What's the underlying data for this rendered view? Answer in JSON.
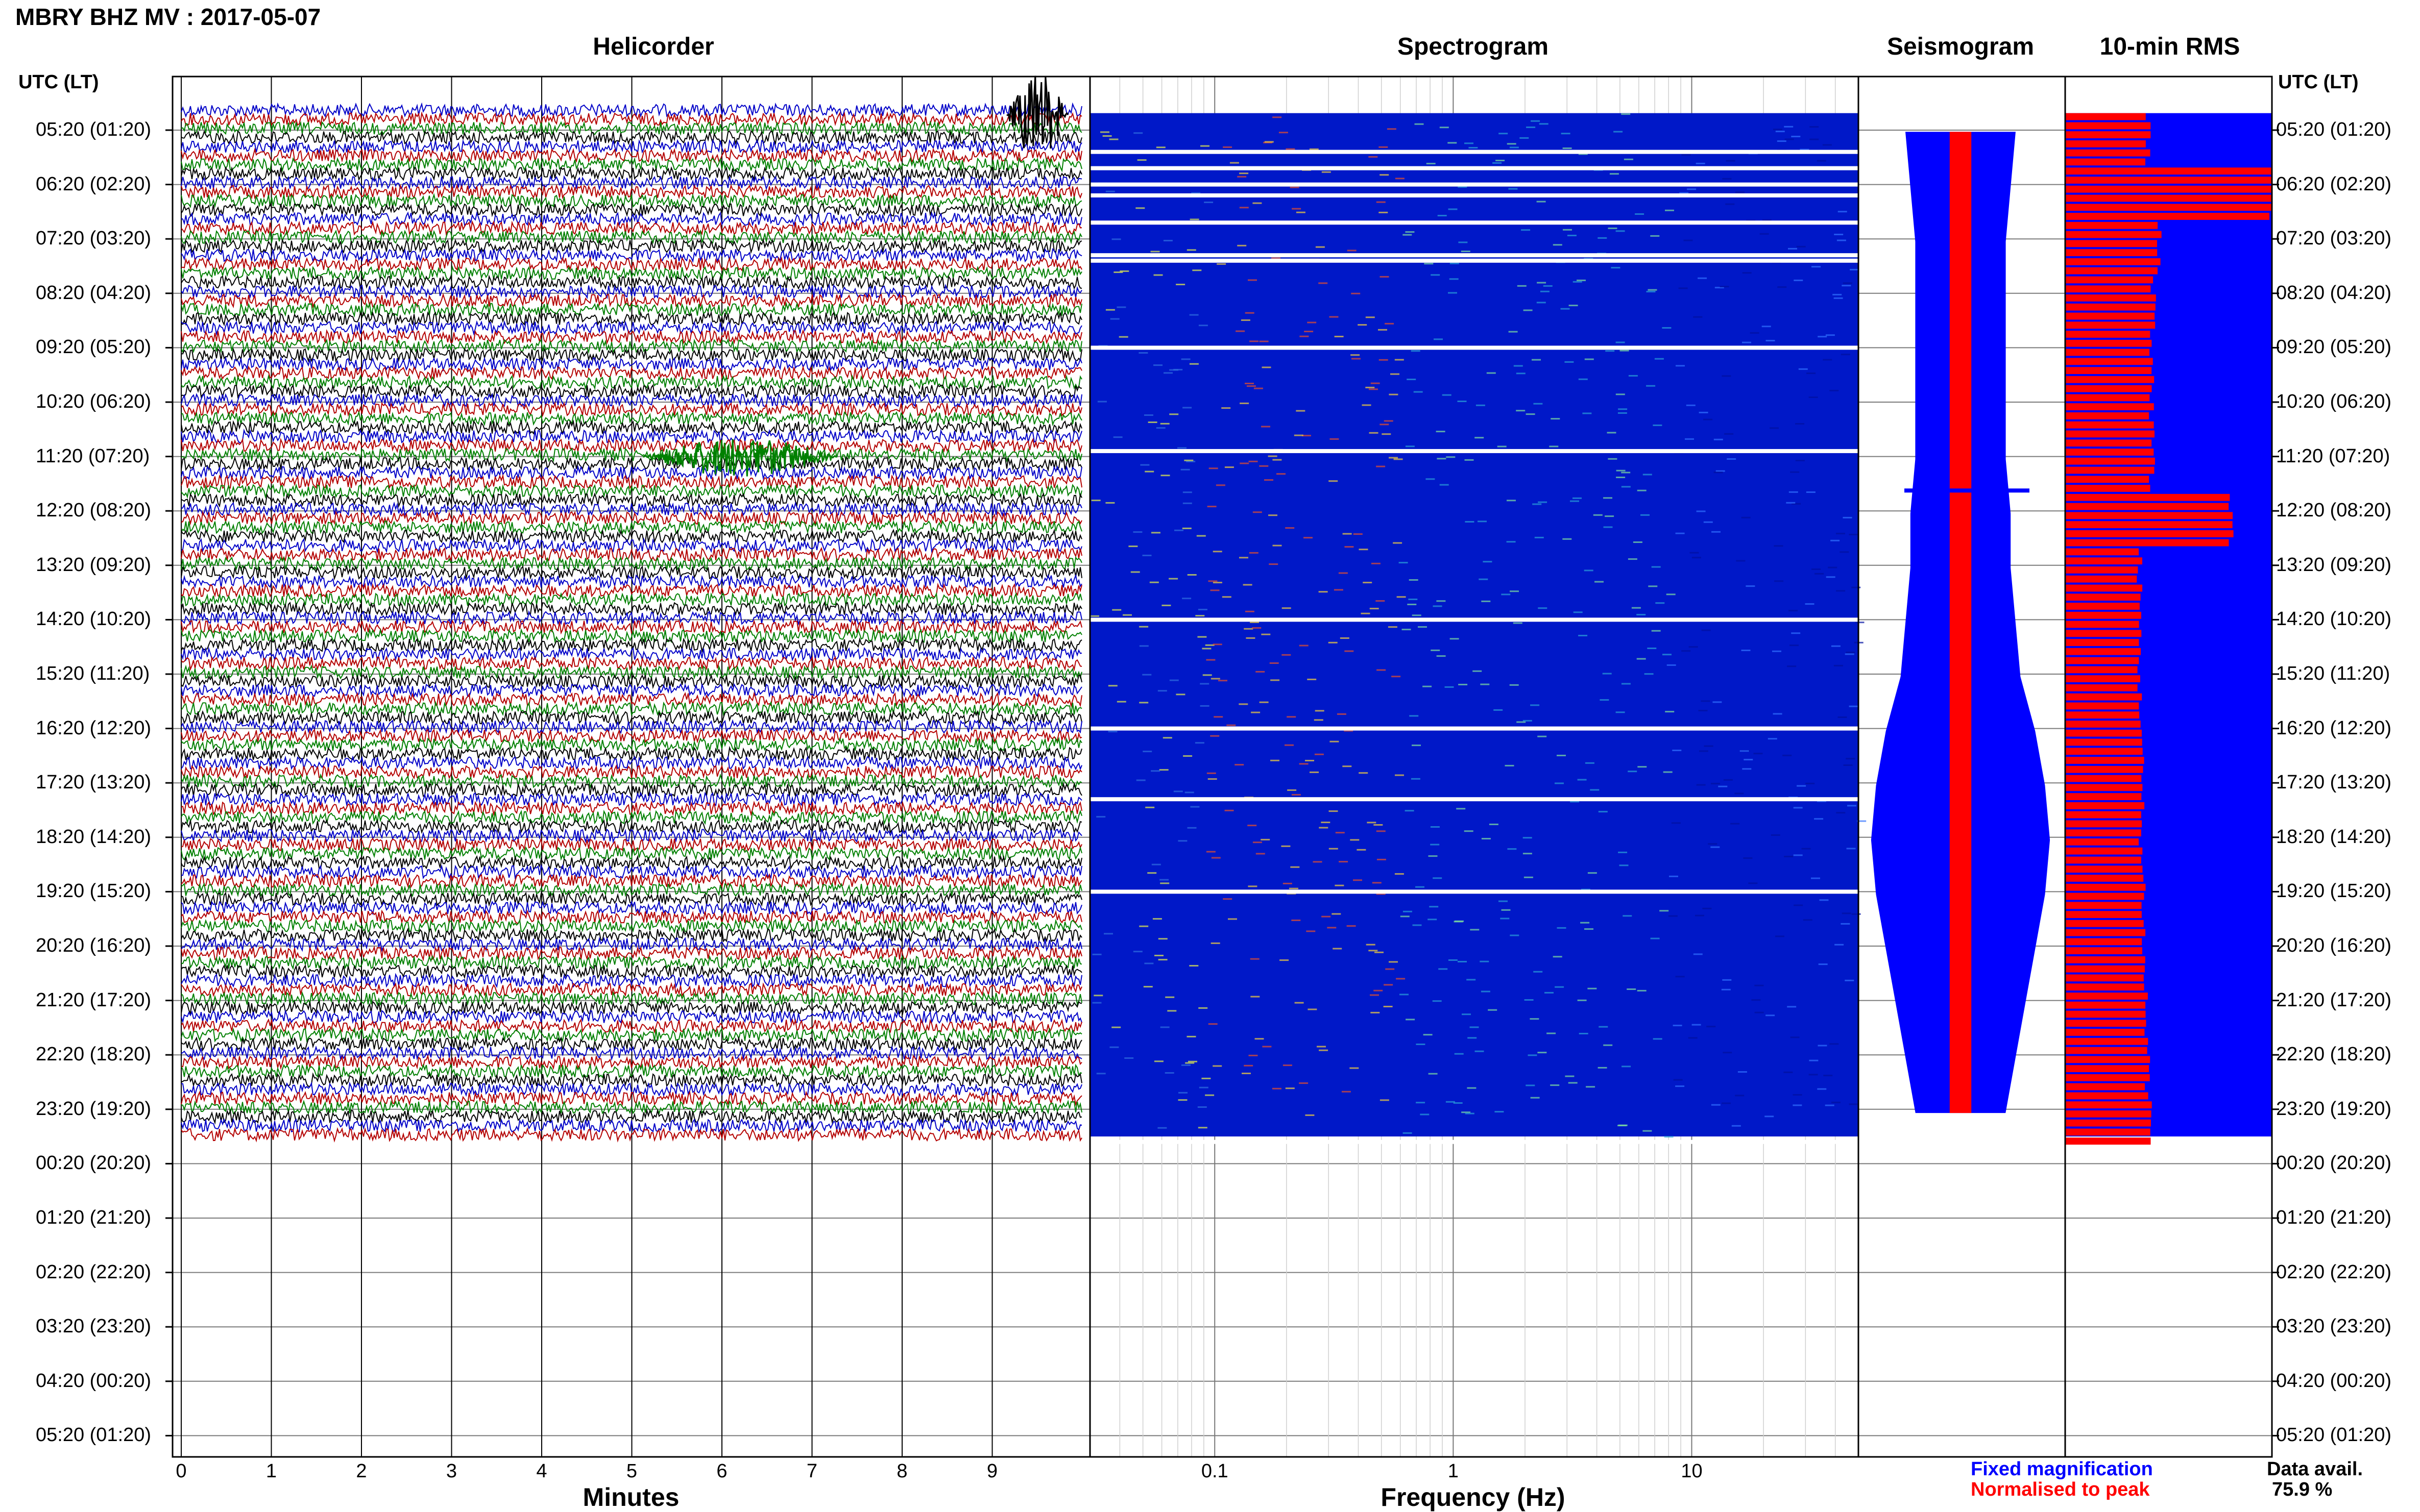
{
  "title": "MBRY BHZ MV : 2017-05-07",
  "panels": {
    "helicorder": "Helicorder",
    "spectrogram": "Spectrogram",
    "seismogram": "Seismogram",
    "rms": "10-min RMS"
  },
  "time_axis": {
    "header": "UTC (LT)",
    "labels": [
      "05:20 (01:20)",
      "06:20 (02:20)",
      "07:20 (03:20)",
      "08:20 (04:20)",
      "09:20 (05:20)",
      "10:20 (06:20)",
      "11:20 (07:20)",
      "12:20 (08:20)",
      "13:20 (09:20)",
      "14:20 (10:20)",
      "15:20 (11:20)",
      "16:20 (12:20)",
      "17:20 (13:20)",
      "18:20 (14:20)",
      "19:20 (15:20)",
      "20:20 (16:20)",
      "21:20 (17:20)",
      "22:20 (18:20)",
      "23:20 (19:20)",
      "00:20 (20:20)",
      "01:20 (21:20)",
      "02:20 (22:20)",
      "03:20 (23:20)",
      "04:20 (00:20)",
      "05:20 (01:20)"
    ]
  },
  "helicorder_axis": {
    "xlabel": "Minutes",
    "ticks": [
      "0",
      "1",
      "2",
      "3",
      "4",
      "5",
      "6",
      "7",
      "8",
      "9"
    ]
  },
  "spectrogram_axis": {
    "xlabel": "Frequency (Hz)",
    "ticks": [
      "0.1",
      "1",
      "10"
    ]
  },
  "legend": {
    "fixed": "Fixed magnification",
    "normalised": "Normalised to peak"
  },
  "data_availability": {
    "label": "Data avail.",
    "value": "75.9 %"
  },
  "colors": {
    "trace_cycle": [
      "#0000c8",
      "#b40000",
      "#008000",
      "#000000"
    ],
    "seismogram_fixed": "#0000ff",
    "seismogram_normalised": "#ff0000",
    "rms_fixed": "#0000ff",
    "rms_normalised": "#ff0000"
  },
  "chart_data": [
    {
      "type": "line",
      "panel": "helicorder",
      "xlabel": "Minutes",
      "xlim": [
        0,
        10
      ],
      "rows_per_hour": 6,
      "data_hours": 19,
      "events": [
        {
          "hour": 0,
          "minute": 9.5,
          "note": "large black trace burst"
        },
        {
          "hour": 6,
          "minute": 6.2,
          "note": "green signal burst"
        }
      ]
    },
    {
      "type": "heatmap",
      "panel": "spectrogram",
      "xlabel": "Frequency (Hz)",
      "xscale": "log",
      "xlim": [
        0.03,
        50
      ],
      "peak_band_hz": [
        0.2,
        0.5
      ]
    },
    {
      "type": "line",
      "panel": "seismogram",
      "series": [
        {
          "name": "Fixed magnification",
          "half_width": [
            0.55,
            0.5,
            0.45,
            0.45,
            0.45,
            0.45,
            0.45,
            0.5,
            0.5,
            0.55,
            0.6,
            0.75,
            0.85,
            0.9,
            0.85,
            0.75,
            0.65,
            0.55,
            0.45
          ]
        },
        {
          "name": "Normalised to peak",
          "half_width": [
            0.1,
            0.1,
            0.1,
            0.1,
            0.1,
            0.1,
            0.1,
            0.1,
            0.1,
            0.1,
            0.1,
            0.1,
            0.1,
            0.1,
            0.1,
            0.1,
            0.1,
            0.1,
            0.1
          ]
        }
      ]
    },
    {
      "type": "bar",
      "panel": "10-min RMS",
      "series": [
        {
          "name": "Normalised to peak",
          "relative": [
            0.4,
            1.0,
            0.45,
            0.43,
            0.42,
            0.42,
            0.42,
            0.8,
            0.36,
            0.36,
            0.36,
            0.37,
            0.37,
            0.37,
            0.38,
            0.38,
            0.39,
            0.4,
            0.41
          ]
        }
      ]
    }
  ]
}
